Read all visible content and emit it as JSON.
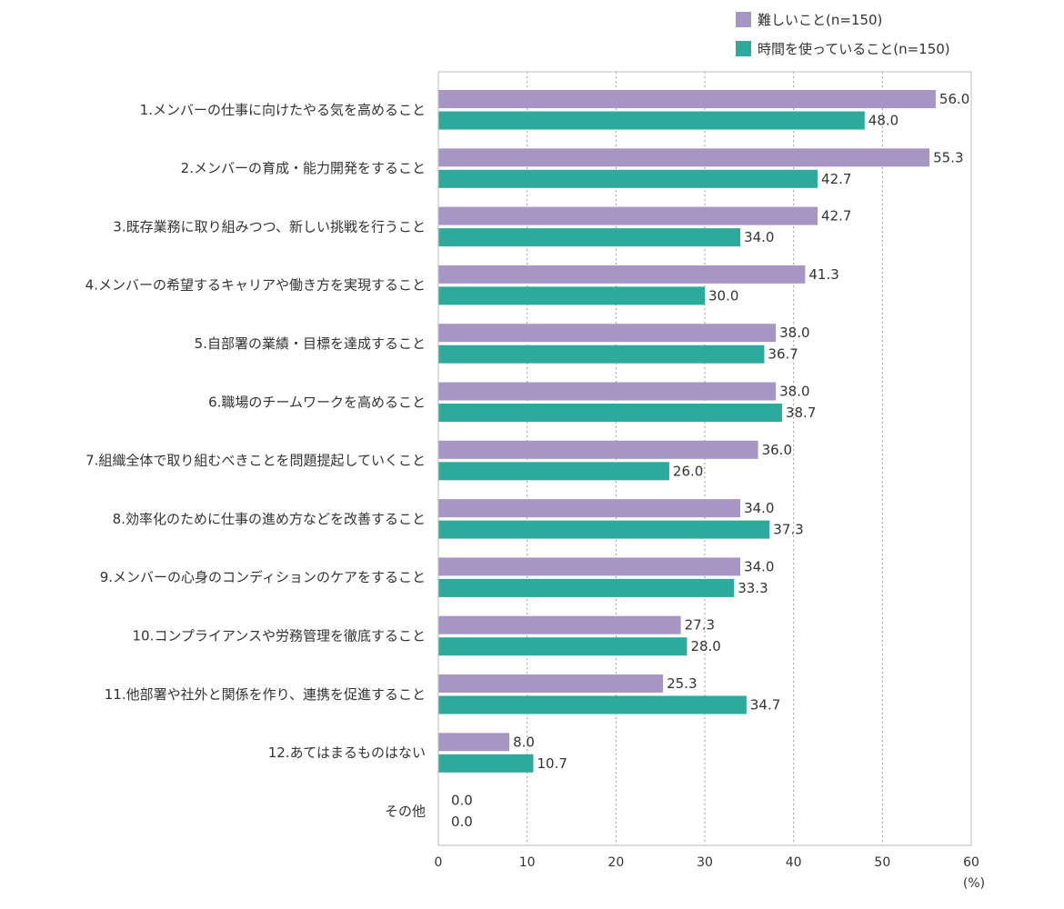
{
  "chart_data": {
    "type": "bar",
    "orientation": "horizontal",
    "categories": [
      "1.メンバーの仕事に向けたやる気を高めること",
      "2.メンバーの育成・能力開発をすること",
      "3.既存業務に取り組みつつ、新しい挑戦を行うこと",
      "4.メンバーの希望するキャリアや働き方を実現すること",
      "5.自部署の業績・目標を達成すること",
      "6.職場のチームワークを高めること",
      "7.組織全体で取り組むべきことを問題提起していくこと",
      "8.効率化のために仕事の進め方などを改善すること",
      "9.メンバーの心身のコンディションのケアをすること",
      "10.コンプライアンスや労務管理を徹底すること",
      "11.他部署や社外と関係を作り、連携を促進すること",
      "12.あてはまるものはない",
      "その他"
    ],
    "series": [
      {
        "name": "難しいこと(n=150)",
        "color": "#a796c4",
        "values": [
          56.0,
          55.3,
          42.7,
          41.3,
          38.0,
          38.0,
          36.0,
          34.0,
          34.0,
          27.3,
          25.3,
          8.0,
          0.0
        ]
      },
      {
        "name": "時間を使っていること(n=150)",
        "color": "#2eaa9c",
        "values": [
          48.0,
          42.7,
          34.0,
          30.0,
          36.7,
          38.7,
          26.0,
          37.3,
          33.3,
          28.0,
          34.7,
          10.7,
          0.0
        ]
      }
    ],
    "xlim": [
      0,
      60
    ],
    "xticks": [
      0,
      10,
      20,
      30,
      40,
      50,
      60
    ],
    "unit": "(%)",
    "grid": "vertical-dotted",
    "legend_position": "top-right",
    "value_label_decimals": 1
  }
}
